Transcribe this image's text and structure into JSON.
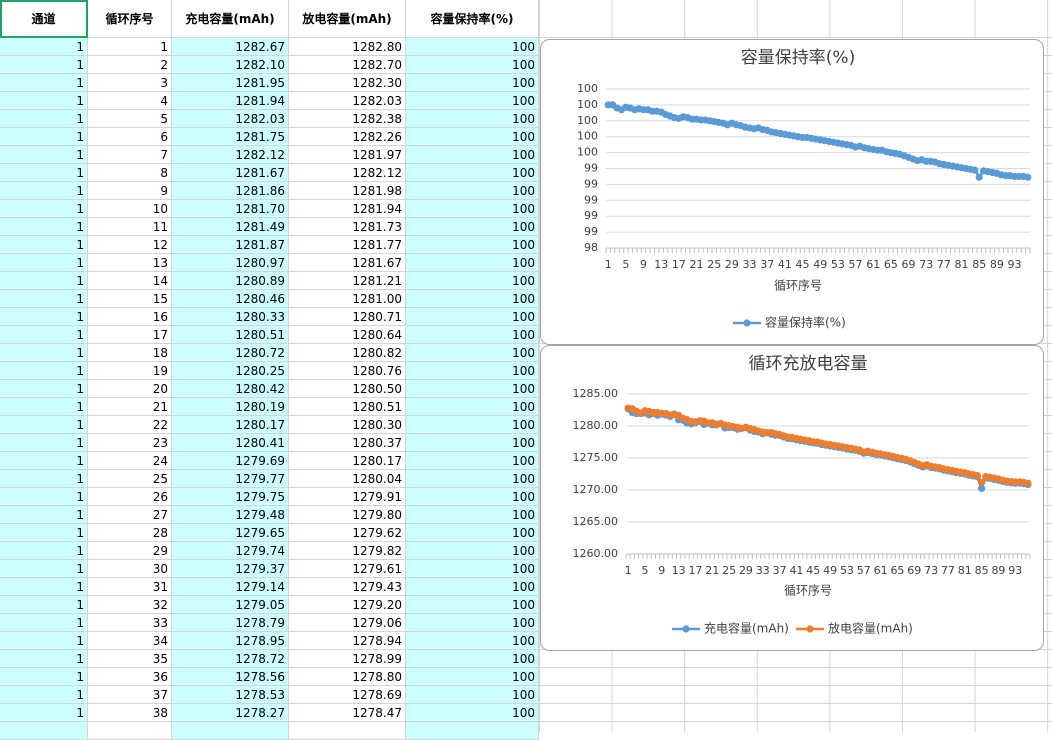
{
  "table": {
    "headers": [
      "通道",
      "循环序号",
      "充电容量(mAh)",
      "放电容量(mAh)",
      "容量保持率(%)"
    ],
    "rows": [
      [
        "1",
        "1",
        "1282.67",
        "1282.80",
        "100"
      ],
      [
        "1",
        "2",
        "1282.10",
        "1282.70",
        "100"
      ],
      [
        "1",
        "3",
        "1281.95",
        "1282.30",
        "100"
      ],
      [
        "1",
        "4",
        "1281.94",
        "1282.03",
        "100"
      ],
      [
        "1",
        "5",
        "1282.03",
        "1282.38",
        "100"
      ],
      [
        "1",
        "6",
        "1281.75",
        "1282.26",
        "100"
      ],
      [
        "1",
        "7",
        "1282.12",
        "1281.97",
        "100"
      ],
      [
        "1",
        "8",
        "1281.67",
        "1282.12",
        "100"
      ],
      [
        "1",
        "9",
        "1281.86",
        "1281.98",
        "100"
      ],
      [
        "1",
        "10",
        "1281.70",
        "1281.94",
        "100"
      ],
      [
        "1",
        "11",
        "1281.49",
        "1281.73",
        "100"
      ],
      [
        "1",
        "12",
        "1281.87",
        "1281.77",
        "100"
      ],
      [
        "1",
        "13",
        "1280.97",
        "1281.67",
        "100"
      ],
      [
        "1",
        "14",
        "1280.89",
        "1281.21",
        "100"
      ],
      [
        "1",
        "15",
        "1280.46",
        "1281.00",
        "100"
      ],
      [
        "1",
        "16",
        "1280.33",
        "1280.71",
        "100"
      ],
      [
        "1",
        "17",
        "1280.51",
        "1280.64",
        "100"
      ],
      [
        "1",
        "18",
        "1280.72",
        "1280.82",
        "100"
      ],
      [
        "1",
        "19",
        "1280.25",
        "1280.76",
        "100"
      ],
      [
        "1",
        "20",
        "1280.42",
        "1280.50",
        "100"
      ],
      [
        "1",
        "21",
        "1280.19",
        "1280.51",
        "100"
      ],
      [
        "1",
        "22",
        "1280.17",
        "1280.30",
        "100"
      ],
      [
        "1",
        "23",
        "1280.41",
        "1280.37",
        "100"
      ],
      [
        "1",
        "24",
        "1279.69",
        "1280.17",
        "100"
      ],
      [
        "1",
        "25",
        "1279.77",
        "1280.04",
        "100"
      ],
      [
        "1",
        "26",
        "1279.75",
        "1279.91",
        "100"
      ],
      [
        "1",
        "27",
        "1279.48",
        "1279.80",
        "100"
      ],
      [
        "1",
        "28",
        "1279.65",
        "1279.62",
        "100"
      ],
      [
        "1",
        "29",
        "1279.74",
        "1279.82",
        "100"
      ],
      [
        "1",
        "30",
        "1279.37",
        "1279.61",
        "100"
      ],
      [
        "1",
        "31",
        "1279.14",
        "1279.43",
        "100"
      ],
      [
        "1",
        "32",
        "1279.05",
        "1279.20",
        "100"
      ],
      [
        "1",
        "33",
        "1278.79",
        "1279.06",
        "100"
      ],
      [
        "1",
        "34",
        "1278.95",
        "1278.94",
        "100"
      ],
      [
        "1",
        "35",
        "1278.72",
        "1278.99",
        "100"
      ],
      [
        "1",
        "36",
        "1278.56",
        "1278.80",
        "100"
      ],
      [
        "1",
        "37",
        "1278.53",
        "1278.69",
        "100"
      ],
      [
        "1",
        "38",
        "1278.27",
        "1278.47",
        "100"
      ]
    ]
  },
  "chart_data": [
    {
      "type": "line",
      "title": "容量保持率(%)",
      "x_label": "循环序号",
      "legend": "bottom",
      "grid": true,
      "categories": [
        1,
        null,
        null,
        null,
        5,
        null,
        null,
        null,
        9,
        null,
        null,
        null,
        13,
        null,
        null,
        null,
        17,
        null,
        null,
        null,
        21,
        null,
        null,
        null,
        25,
        null,
        null,
        null,
        29,
        null,
        null,
        null,
        33,
        null,
        null,
        null,
        37,
        null,
        null,
        null,
        41,
        null,
        null,
        null,
        45,
        null,
        null,
        null,
        49,
        null,
        null,
        null,
        53,
        null,
        null,
        null,
        57,
        null,
        null,
        null,
        61,
        null,
        null,
        null,
        65,
        null,
        null,
        null,
        69,
        null,
        null,
        null,
        73,
        null,
        null,
        null,
        77,
        null,
        null,
        null,
        81,
        null,
        null,
        null,
        85,
        null,
        null,
        null,
        89,
        null,
        null,
        null,
        93,
        null,
        null,
        null
      ],
      "ylim": [
        98.4,
        100.4
      ],
      "yticks": [
        {
          "value": 98.4,
          "label": "98"
        },
        {
          "value": 98.6,
          "label": "99"
        },
        {
          "value": 98.8,
          "label": "99"
        },
        {
          "value": 99.0,
          "label": "99"
        },
        {
          "value": 99.2,
          "label": "99"
        },
        {
          "value": 99.4,
          "label": "99"
        },
        {
          "value": 99.6,
          "label": "100"
        },
        {
          "value": 99.8,
          "label": "100"
        },
        {
          "value": 100.0,
          "label": "100"
        },
        {
          "value": 100.2,
          "label": "100"
        },
        {
          "value": 100.4,
          "label": "100"
        }
      ],
      "series": [
        {
          "name": "容量保持率(%)",
          "color": "#5b9bd5",
          "values": [
            100.2,
            100.2,
            100.16,
            100.14,
            100.17,
            100.16,
            100.14,
            100.15,
            100.14,
            100.14,
            100.12,
            100.12,
            100.11,
            100.08,
            100.06,
            100.04,
            100.03,
            100.05,
            100.04,
            100.02,
            100.02,
            100.01,
            100.01,
            100.0,
            99.99,
            99.98,
            99.97,
            99.95,
            99.97,
            99.95,
            99.94,
            99.92,
            99.91,
            99.9,
            99.91,
            99.89,
            99.88,
            99.86,
            99.85,
            99.84,
            99.83,
            99.82,
            99.81,
            99.8,
            99.79,
            99.79,
            99.78,
            99.77,
            99.76,
            99.75,
            99.74,
            99.73,
            99.72,
            99.71,
            99.7,
            99.69,
            99.67,
            99.68,
            99.66,
            99.65,
            99.64,
            99.63,
            99.63,
            99.61,
            99.6,
            99.59,
            99.58,
            99.56,
            99.54,
            99.52,
            99.5,
            99.51,
            99.49,
            99.49,
            99.48,
            99.46,
            99.45,
            99.44,
            99.43,
            99.42,
            99.41,
            99.4,
            99.39,
            99.38,
            99.29,
            99.37,
            99.36,
            99.35,
            99.34,
            99.32,
            99.31,
            99.31,
            99.3,
            99.3,
            99.3,
            99.29
          ]
        }
      ]
    },
    {
      "type": "line",
      "title": "循环充放电容量",
      "x_label": "循环序号",
      "legend": "bottom",
      "grid": true,
      "categories": [
        1,
        null,
        null,
        null,
        5,
        null,
        null,
        null,
        9,
        null,
        null,
        null,
        13,
        null,
        null,
        null,
        17,
        null,
        null,
        null,
        21,
        null,
        null,
        null,
        25,
        null,
        null,
        null,
        29,
        null,
        null,
        null,
        33,
        null,
        null,
        null,
        37,
        null,
        null,
        null,
        41,
        null,
        null,
        null,
        45,
        null,
        null,
        null,
        49,
        null,
        null,
        null,
        53,
        null,
        null,
        null,
        57,
        null,
        null,
        null,
        61,
        null,
        null,
        null,
        65,
        null,
        null,
        null,
        69,
        null,
        null,
        null,
        73,
        null,
        null,
        null,
        77,
        null,
        null,
        null,
        81,
        null,
        null,
        null,
        85,
        null,
        null,
        null,
        89,
        null,
        null,
        null,
        93,
        null,
        null,
        null
      ],
      "ylim": [
        1260,
        1285
      ],
      "yticks": [
        {
          "value": 1260,
          "label": "1260.00"
        },
        {
          "value": 1265,
          "label": "1265.00"
        },
        {
          "value": 1270,
          "label": "1270.00"
        },
        {
          "value": 1275,
          "label": "1275.00"
        },
        {
          "value": 1280,
          "label": "1280.00"
        },
        {
          "value": 1285,
          "label": "1285.00"
        }
      ],
      "series": [
        {
          "name": "充电容量(mAh)",
          "color": "#5b9bd5",
          "values": [
            1282.67,
            1282.1,
            1281.95,
            1281.94,
            1282.03,
            1281.75,
            1282.12,
            1281.67,
            1281.86,
            1281.7,
            1281.49,
            1281.87,
            1280.97,
            1280.89,
            1280.46,
            1280.33,
            1280.51,
            1280.72,
            1280.25,
            1280.42,
            1280.19,
            1280.17,
            1280.41,
            1279.69,
            1279.77,
            1279.75,
            1279.48,
            1279.65,
            1279.74,
            1279.37,
            1279.14,
            1279.05,
            1278.79,
            1278.95,
            1278.72,
            1278.56,
            1278.53,
            1278.27,
            1278.05,
            1278.0,
            1277.85,
            1277.72,
            1277.6,
            1277.48,
            1277.35,
            1277.3,
            1277.1,
            1277.0,
            1276.88,
            1276.78,
            1276.65,
            1276.55,
            1276.4,
            1276.3,
            1276.2,
            1276.05,
            1275.75,
            1275.85,
            1275.7,
            1275.52,
            1275.45,
            1275.3,
            1275.2,
            1275.05,
            1274.88,
            1274.75,
            1274.6,
            1274.4,
            1274.1,
            1273.85,
            1273.6,
            1273.75,
            1273.5,
            1273.42,
            1273.3,
            1273.1,
            1272.98,
            1272.85,
            1272.72,
            1272.6,
            1272.5,
            1272.32,
            1272.2,
            1272.05,
            1270.25,
            1271.9,
            1271.8,
            1271.65,
            1271.52,
            1271.35,
            1271.2,
            1271.12,
            1271.05,
            1271.08,
            1271.0,
            1270.85
          ]
        },
        {
          "name": "放电容量(mAh)",
          "color": "#ed7d31",
          "values": [
            1282.8,
            1282.7,
            1282.3,
            1282.03,
            1282.38,
            1282.26,
            1281.97,
            1282.12,
            1281.98,
            1281.94,
            1281.73,
            1281.77,
            1281.67,
            1281.21,
            1281.0,
            1280.71,
            1280.64,
            1280.82,
            1280.76,
            1280.5,
            1280.51,
            1280.3,
            1280.37,
            1280.17,
            1280.04,
            1279.91,
            1279.8,
            1279.62,
            1279.82,
            1279.61,
            1279.43,
            1279.2,
            1279.06,
            1278.94,
            1278.99,
            1278.8,
            1278.69,
            1278.47,
            1278.27,
            1278.2,
            1278.05,
            1277.95,
            1277.8,
            1277.7,
            1277.55,
            1277.5,
            1277.32,
            1277.2,
            1277.1,
            1276.98,
            1276.85,
            1276.75,
            1276.6,
            1276.52,
            1276.4,
            1276.25,
            1275.95,
            1276.05,
            1275.9,
            1275.72,
            1275.65,
            1275.5,
            1275.4,
            1275.25,
            1275.08,
            1274.95,
            1274.8,
            1274.6,
            1274.3,
            1274.05,
            1273.8,
            1273.95,
            1273.7,
            1273.62,
            1273.5,
            1273.3,
            1273.18,
            1273.05,
            1272.92,
            1272.8,
            1272.7,
            1272.52,
            1272.4,
            1272.25,
            1271.15,
            1272.1,
            1272.0,
            1271.85,
            1271.72,
            1271.55,
            1271.4,
            1271.32,
            1271.25,
            1271.28,
            1271.2,
            1271.05
          ]
        }
      ]
    }
  ]
}
